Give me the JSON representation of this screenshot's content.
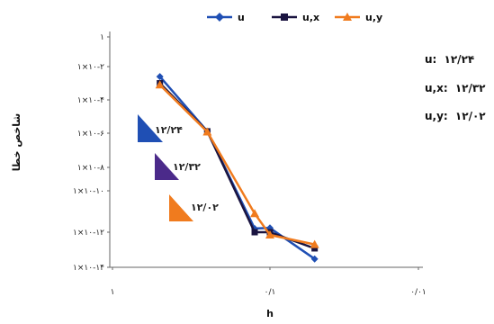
{
  "chart_data": {
    "type": "line",
    "xlabel": "h",
    "ylabel": "شاخص خطا",
    "xscale": "log",
    "yscale": "log",
    "xlim": [
      1,
      0.01
    ],
    "ylim": [
      1e-14,
      1
    ],
    "x_tick_labels": [
      "۱",
      "۰/۱",
      "۰/۰۱"
    ],
    "y_tick_labels": [
      "۱",
      "۱×۱۰-۲",
      "۱×۱۰-۴",
      "۱×۱۰-۶",
      "۱×۱۰-۸",
      "۱×۱۰-۱۰",
      "۱×۱۰-۱۲",
      "۱×۱۰-۱۴"
    ],
    "x": [
      0.5,
      0.25,
      0.125,
      0.1,
      0.05
    ],
    "series": [
      {
        "name": "u",
        "color": "#1f4fb4",
        "marker": "diamond",
        "values": [
          0.0025,
          1.3e-06,
          1.5e-12,
          1.6e-12,
          3e-14
        ]
      },
      {
        "name": "u,x",
        "color": "#1a1440",
        "marker": "square",
        "values": [
          0.001,
          1.3e-06,
          1e-12,
          1e-12,
          1.2e-13
        ]
      },
      {
        "name": "u,y",
        "color": "#f07b1e",
        "marker": "triangle",
        "values": [
          0.0008,
          1.2e-06,
          8e-12,
          7e-13,
          2e-13
        ]
      }
    ],
    "legend": "top",
    "grid": false,
    "slope_triangles": [
      {
        "label": "۱۲/۲۴",
        "color": "#1f4fb4"
      },
      {
        "label": "۱۲/۳۲",
        "color": "#4b2a8a"
      },
      {
        "label": "۱۲/۰۲",
        "color": "#f07b1e"
      }
    ],
    "annotations": [
      {
        "key": "u:",
        "value": "۱۲/۲۴"
      },
      {
        "key": "u,x:",
        "value": "۱۲/۳۲"
      },
      {
        "key": "u,y:",
        "value": "۱۲/۰۲"
      }
    ]
  }
}
